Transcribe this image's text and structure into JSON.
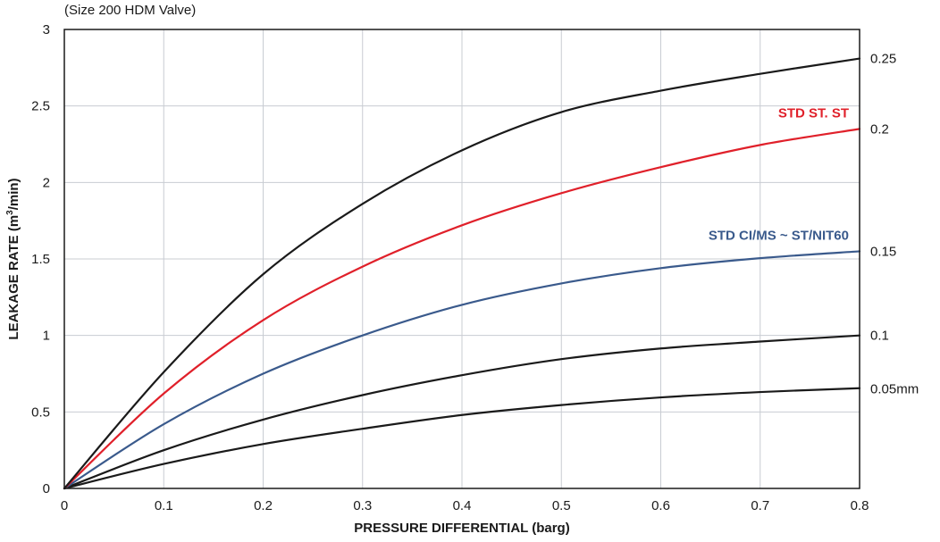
{
  "chart_data": {
    "type": "line",
    "subtitle": "(Size 200 HDM Valve)",
    "xlabel": "PRESSURE DIFFERENTIAL (barg)",
    "ylabel_prefix": "LEAKAGE RATE (m",
    "ylabel_sup": "3",
    "ylabel_suffix": "/min)",
    "xlim": [
      0,
      0.8
    ],
    "ylim": [
      0,
      3
    ],
    "x_ticks": [
      "0",
      "0.1",
      "0.2",
      "0.3",
      "0.4",
      "0.5",
      "0.6",
      "0.7",
      "0.8"
    ],
    "y_ticks": [
      "0",
      "0.5",
      "1",
      "1.5",
      "2",
      "2.5",
      "3"
    ],
    "grid": true,
    "x": [
      0,
      0.1,
      0.2,
      0.3,
      0.4,
      0.5,
      0.6,
      0.7,
      0.8
    ],
    "series": [
      {
        "values": [
          0,
          0.16,
          0.29,
          0.39,
          0.48,
          0.545,
          0.595,
          0.63,
          0.655
        ],
        "color": "#1a1a1a",
        "right_label": "0.05mm",
        "right_label_y": 0.65,
        "inline_label": ""
      },
      {
        "values": [
          0,
          0.25,
          0.45,
          0.61,
          0.74,
          0.845,
          0.915,
          0.96,
          1.0
        ],
        "color": "#1a1a1a",
        "right_label": "0.1",
        "right_label_y": 1.0,
        "inline_label": ""
      },
      {
        "values": [
          0,
          0.42,
          0.75,
          1.0,
          1.2,
          1.34,
          1.44,
          1.505,
          1.55
        ],
        "color": "#3a5a8c",
        "right_label": "0.15",
        "right_label_y": 1.55,
        "inline_label": "STD CI/MS ~ ST/NIT60"
      },
      {
        "values": [
          0,
          0.62,
          1.1,
          1.45,
          1.72,
          1.93,
          2.1,
          2.245,
          2.35
        ],
        "color": "#e0202a",
        "right_label": "0.2",
        "right_label_y": 2.35,
        "inline_label": "STD ST. ST"
      },
      {
        "values": [
          0,
          0.76,
          1.4,
          1.86,
          2.21,
          2.46,
          2.6,
          2.71,
          2.81
        ],
        "color": "#1a1a1a",
        "right_label": "0.25",
        "right_label_y": 2.81,
        "inline_label": ""
      }
    ]
  }
}
